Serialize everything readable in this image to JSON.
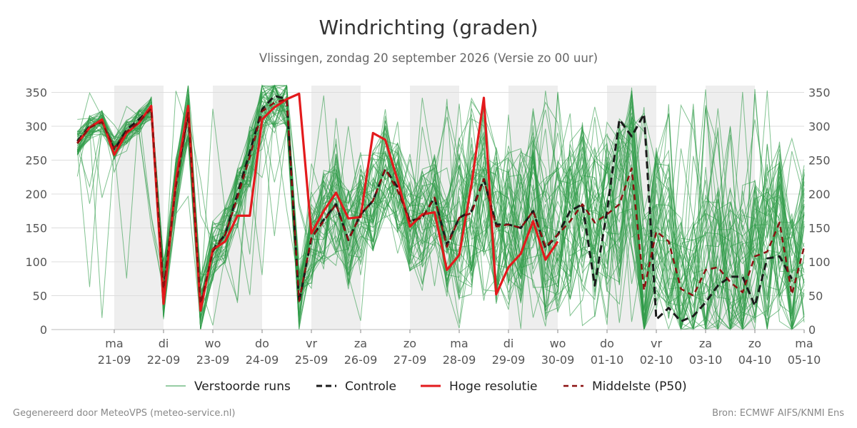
{
  "title": "Windrichting (graden)",
  "subtitle": "Vlissingen, zondag 20 september 2026 (Versie zo 00 uur)",
  "footer_left": "Gegenereerd door MeteoVPS (meteo-service.nl)",
  "footer_right": "Bron: ECMWF AIFS/KNMI Ens",
  "colors": {
    "ensemble": "#2e9b47",
    "control": "#1a1a1a",
    "high_res": "#e31a1c",
    "median": "#8b1010",
    "night_band": "#eeeeee",
    "grid": "#dddddd"
  },
  "chart_data": {
    "type": "line",
    "ylim": [
      0,
      360
    ],
    "y_ticks": [
      0,
      50,
      100,
      150,
      200,
      250,
      300,
      350
    ],
    "x_tick_labels": [
      {
        "day": "ma",
        "date": "21-09"
      },
      {
        "day": "di",
        "date": "22-09"
      },
      {
        "day": "wo",
        "date": "23-09"
      },
      {
        "day": "do",
        "date": "24-09"
      },
      {
        "day": "vr",
        "date": "25-09"
      },
      {
        "day": "za",
        "date": "26-09"
      },
      {
        "day": "zo",
        "date": "27-09"
      },
      {
        "day": "ma",
        "date": "28-09"
      },
      {
        "day": "di",
        "date": "29-09"
      },
      {
        "day": "wo",
        "date": "30-09"
      },
      {
        "day": "do",
        "date": "01-10"
      },
      {
        "day": "vr",
        "date": "02-10"
      },
      {
        "day": "za",
        "date": "03-10"
      },
      {
        "day": "zo",
        "date": "04-10"
      },
      {
        "day": "ma",
        "date": "05-10"
      }
    ],
    "legend": [
      "Verstoorde runs",
      "Controle",
      "Hoge resolutie",
      "Middelste (P50)"
    ],
    "ensemble_runs": 50,
    "series": [
      {
        "name": "Controle",
        "style": "dashed",
        "points": [
          [
            -0.75,
            278
          ],
          [
            -0.5,
            300
          ],
          [
            -0.25,
            308
          ],
          [
            0,
            265
          ],
          [
            0.25,
            295
          ],
          [
            0.5,
            310
          ],
          [
            0.75,
            328
          ],
          [
            1,
            55
          ],
          [
            1.25,
            215
          ],
          [
            1.5,
            320
          ],
          [
            1.75,
            32
          ],
          [
            2,
            118
          ],
          [
            2.25,
            140
          ],
          [
            2.5,
            200
          ],
          [
            2.75,
            262
          ],
          [
            3,
            325
          ],
          [
            3.25,
            345
          ],
          [
            3.5,
            340
          ],
          [
            3.75,
            40
          ],
          [
            4,
            135
          ],
          [
            4.25,
            162
          ],
          [
            4.5,
            185
          ],
          [
            4.75,
            132
          ],
          [
            5,
            170
          ],
          [
            5.25,
            190
          ],
          [
            5.5,
            237
          ],
          [
            5.75,
            210
          ],
          [
            6,
            160
          ],
          [
            6.25,
            165
          ],
          [
            6.5,
            195
          ],
          [
            6.75,
            125
          ],
          [
            7,
            165
          ],
          [
            7.25,
            175
          ],
          [
            7.5,
            222
          ],
          [
            7.75,
            155
          ],
          [
            8,
            155
          ],
          [
            8.25,
            150
          ],
          [
            8.5,
            175
          ],
          [
            8.75,
            120
          ],
          [
            9,
            140
          ],
          [
            9.25,
            175
          ],
          [
            9.5,
            185
          ],
          [
            9.75,
            65
          ],
          [
            10,
            175
          ],
          [
            10.25,
            310
          ],
          [
            10.5,
            285
          ],
          [
            10.75,
            318
          ],
          [
            11,
            15
          ],
          [
            11.25,
            32
          ],
          [
            11.5,
            12
          ],
          [
            11.75,
            20
          ],
          [
            12,
            40
          ],
          [
            12.25,
            65
          ],
          [
            12.5,
            78
          ],
          [
            12.75,
            78
          ],
          [
            13,
            35
          ],
          [
            13.25,
            105
          ],
          [
            13.5,
            108
          ],
          [
            13.75,
            75
          ]
        ]
      },
      {
        "name": "Hoge resolutie",
        "style": "solid",
        "points": [
          [
            -0.75,
            275
          ],
          [
            -0.5,
            298
          ],
          [
            -0.25,
            310
          ],
          [
            0,
            258
          ],
          [
            0.25,
            290
          ],
          [
            0.5,
            305
          ],
          [
            0.75,
            330
          ],
          [
            1,
            38
          ],
          [
            1.25,
            220
          ],
          [
            1.5,
            330
          ],
          [
            1.75,
            28
          ],
          [
            2,
            118
          ],
          [
            2.25,
            130
          ],
          [
            2.5,
            168
          ],
          [
            2.75,
            168
          ],
          [
            3,
            310
          ],
          [
            3.25,
            328
          ],
          [
            3.5,
            340
          ],
          [
            3.75,
            348
          ],
          [
            4,
            142
          ],
          [
            4.25,
            175
          ],
          [
            4.5,
            202
          ],
          [
            4.75,
            164
          ],
          [
            5,
            166
          ],
          [
            5.25,
            290
          ],
          [
            5.5,
            280
          ],
          [
            5.75,
            220
          ],
          [
            6,
            152
          ],
          [
            6.25,
            170
          ],
          [
            6.5,
            173
          ],
          [
            6.75,
            88
          ],
          [
            7,
            110
          ],
          [
            7.25,
            215
          ],
          [
            7.5,
            342
          ],
          [
            7.75,
            52
          ],
          [
            8,
            92
          ],
          [
            8.25,
            112
          ],
          [
            8.5,
            160
          ],
          [
            8.75,
            103
          ],
          [
            9,
            130
          ]
        ]
      },
      {
        "name": "Middelste (P50)",
        "style": "dashed",
        "points": [
          [
            -0.75,
            275
          ],
          [
            -0.5,
            298
          ],
          [
            -0.25,
            306
          ],
          [
            0,
            268
          ],
          [
            0.25,
            292
          ],
          [
            0.5,
            306
          ],
          [
            0.75,
            326
          ],
          [
            1,
            60
          ],
          [
            1.25,
            210
          ],
          [
            1.5,
            320
          ],
          [
            1.75,
            38
          ],
          [
            2,
            115
          ],
          [
            2.25,
            140
          ],
          [
            2.5,
            195
          ],
          [
            2.75,
            255
          ],
          [
            3,
            322
          ],
          [
            3.25,
            335
          ],
          [
            3.5,
            340
          ],
          [
            3.75,
            42
          ],
          [
            4,
            135
          ],
          [
            4.25,
            160
          ],
          [
            4.5,
            185
          ],
          [
            4.75,
            132
          ],
          [
            5,
            170
          ],
          [
            5.25,
            190
          ],
          [
            5.5,
            237
          ],
          [
            5.75,
            205
          ],
          [
            6,
            160
          ],
          [
            6.25,
            165
          ],
          [
            6.5,
            195
          ],
          [
            6.75,
            122
          ],
          [
            7,
            165
          ],
          [
            7.25,
            172
          ],
          [
            7.5,
            222
          ],
          [
            7.75,
            152
          ],
          [
            8,
            155
          ],
          [
            8.25,
            150
          ],
          [
            8.5,
            175
          ],
          [
            8.75,
            122
          ],
          [
            9,
            140
          ],
          [
            9.25,
            160
          ],
          [
            9.5,
            185
          ],
          [
            9.75,
            158
          ],
          [
            10,
            170
          ],
          [
            10.25,
            185
          ],
          [
            10.5,
            238
          ],
          [
            10.75,
            58
          ],
          [
            11,
            145
          ],
          [
            11.25,
            130
          ],
          [
            11.5,
            60
          ],
          [
            11.75,
            50
          ],
          [
            12,
            88
          ],
          [
            12.25,
            92
          ],
          [
            12.5,
            70
          ],
          [
            12.75,
            55
          ],
          [
            13,
            108
          ],
          [
            13.25,
            115
          ],
          [
            13.5,
            158
          ],
          [
            13.75,
            52
          ],
          [
            14,
            122
          ]
        ]
      }
    ]
  }
}
